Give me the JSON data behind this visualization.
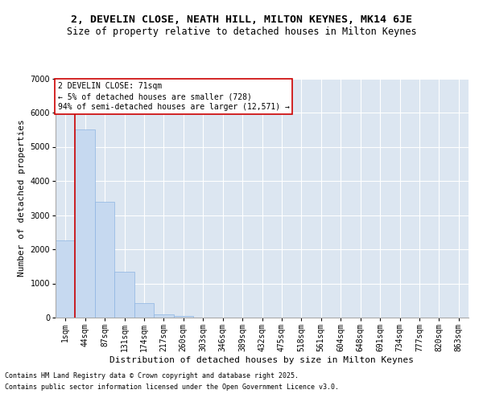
{
  "title_line1": "2, DEVELIN CLOSE, NEATH HILL, MILTON KEYNES, MK14 6JE",
  "title_line2": "Size of property relative to detached houses in Milton Keynes",
  "xlabel": "Distribution of detached houses by size in Milton Keynes",
  "ylabel": "Number of detached properties",
  "categories": [
    "1sqm",
    "44sqm",
    "87sqm",
    "131sqm",
    "174sqm",
    "217sqm",
    "260sqm",
    "303sqm",
    "346sqm",
    "389sqm",
    "432sqm",
    "475sqm",
    "518sqm",
    "561sqm",
    "604sqm",
    "648sqm",
    "691sqm",
    "734sqm",
    "777sqm",
    "820sqm",
    "863sqm"
  ],
  "values": [
    2270,
    5500,
    3400,
    1350,
    420,
    100,
    50,
    0,
    0,
    0,
    0,
    0,
    0,
    0,
    0,
    0,
    0,
    0,
    0,
    0,
    0
  ],
  "bar_color": "#c6d9f0",
  "bar_edge_color": "#8db4e2",
  "bg_color": "#dce6f1",
  "grid_color": "#ffffff",
  "vline_color": "#cc0000",
  "vline_x_index": 1,
  "annotation_text": "2 DEVELIN CLOSE: 71sqm\n← 5% of detached houses are smaller (728)\n94% of semi-detached houses are larger (12,571) →",
  "annotation_box_color": "#cc0000",
  "ylim": [
    0,
    7000
  ],
  "yticks": [
    0,
    1000,
    2000,
    3000,
    4000,
    5000,
    6000,
    7000
  ],
  "footer_line1": "Contains HM Land Registry data © Crown copyright and database right 2025.",
  "footer_line2": "Contains public sector information licensed under the Open Government Licence v3.0.",
  "title_fontsize": 9.5,
  "subtitle_fontsize": 8.5,
  "axis_label_fontsize": 8,
  "tick_fontsize": 7,
  "annotation_fontsize": 7,
  "footer_fontsize": 6,
  "ylabel_fontsize": 8
}
